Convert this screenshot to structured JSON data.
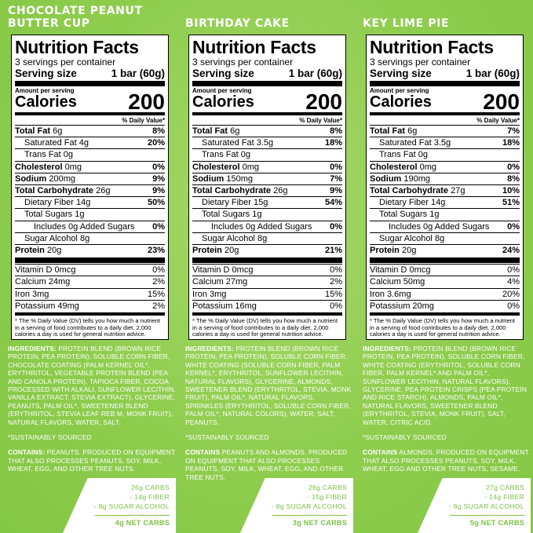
{
  "panels": [
    {
      "flavor": "CHOCOLATE PEANUT BUTTER CUP",
      "facts": {
        "title": "Nutrition Facts",
        "servings": "3 servings per container",
        "serving_size_label": "Serving size",
        "serving_size_value": "1 bar (60g)",
        "amount_per_serving": "Amount per serving",
        "calories_label": "Calories",
        "calories": "200",
        "dv_header": "% Daily Value*",
        "nutrients": [
          {
            "label": "Total Fat",
            "amount": "6g",
            "dv": "8%"
          },
          {
            "label": "Saturated Fat",
            "amount": "4g",
            "dv": "20%"
          },
          {
            "label": "Trans Fat",
            "amount": "0g",
            "dv": ""
          },
          {
            "label": "Cholesterol",
            "amount": "0mg",
            "dv": "0%"
          },
          {
            "label": "Sodium",
            "amount": "200mg",
            "dv": "9%"
          },
          {
            "label": "Total Carbohydrate",
            "amount": "26g",
            "dv": "9%"
          },
          {
            "label": "Dietary Fiber",
            "amount": "14g",
            "dv": "50%"
          },
          {
            "label": "Total Sugars",
            "amount": "1g",
            "dv": ""
          },
          {
            "label": "Includes 0g Added Sugars",
            "amount": "",
            "dv": "0%"
          },
          {
            "label": "Sugar Alcohol",
            "amount": "8g",
            "dv": ""
          },
          {
            "label": "Protein",
            "amount": "20g",
            "dv": "23%"
          }
        ],
        "vitamins": [
          {
            "label": "Vitamin D 0mcg",
            "dv": "0%"
          },
          {
            "label": "Calcium 24mg",
            "dv": "2%"
          },
          {
            "label": "Iron 3mg",
            "dv": "15%"
          },
          {
            "label": "Potassium 49mg",
            "dv": "2%"
          }
        ],
        "footnote": "* The % Daily Value (DV) tells you how much a nutrient in a serving of food contributes to a daily diet. 2,000 calories a day is used for general nutrition advice."
      },
      "ingredients_label": "INGREDIENTS:",
      "ingredients": "PROTEIN BLEND (BROWN RICE PROTEIN, PEA PROTEIN), SOLUBLE CORN FIBER, CHOCOLATE COATING (PALM KERNEL OIL*, ERYTHRITOL, VEGETABLE PROTEIN BLEND (PEA AND CANOLA PROTEIN), TAPIOCA FIBER, COCOA PROCESSED WITH ALKALI, SUNFLOWER LECITHIN, VANILLA EXTRACT, STEVIA EXTRACT), GLYCERINE, PEANUTS, PALM OIL*, SWEETENER BLEND (ERYTHRITOL, STEVIA LEAF REB M, MONK FRUIT), NATURAL FLAVORS, WATER, SALT.",
      "sourced": "*SUSTAINABLY SOURCED",
      "contains_label": "CONTAINS:",
      "contains": "PEANUTS. PRODUCED ON EQUIPMENT THAT ALSO PROCESSES PEANUTS, SOY, MILK, WHEAT, EGG, AND OTHER TREE NUTS.",
      "netcarbs": {
        "carbs": "26g CARBS",
        "fiber": "- 14g FIBER",
        "sugar_alcohol": "- 8g SUGAR ALCOHOL",
        "net": "4g NET CARBS"
      }
    },
    {
      "flavor": "BIRTHDAY CAKE",
      "facts": {
        "title": "Nutrition Facts",
        "servings": "3 servings per container",
        "serving_size_label": "Serving size",
        "serving_size_value": "1 bar (60g)",
        "amount_per_serving": "Amount per serving",
        "calories_label": "Calories",
        "calories": "200",
        "dv_header": "% Daily Value*",
        "nutrients": [
          {
            "label": "Total Fat",
            "amount": "6g",
            "dv": "8%"
          },
          {
            "label": "Saturated Fat",
            "amount": "3.5g",
            "dv": "18%"
          },
          {
            "label": "Trans Fat",
            "amount": "0g",
            "dv": ""
          },
          {
            "label": "Cholesterol",
            "amount": "0mg",
            "dv": "0%"
          },
          {
            "label": "Sodium",
            "amount": "150mg",
            "dv": "7%"
          },
          {
            "label": "Total Carbohydrate",
            "amount": "26g",
            "dv": "9%"
          },
          {
            "label": "Dietary Fiber",
            "amount": "15g",
            "dv": "54%"
          },
          {
            "label": "Total Sugars",
            "amount": "1g",
            "dv": ""
          },
          {
            "label": "Includes 0g Added Sugars",
            "amount": "",
            "dv": "0%"
          },
          {
            "label": "Sugar Alcohol",
            "amount": "8g",
            "dv": ""
          },
          {
            "label": "Protein",
            "amount": "20g",
            "dv": "21%"
          }
        ],
        "vitamins": [
          {
            "label": "Vitamin D 0mcg",
            "dv": "0%"
          },
          {
            "label": "Calcium 27mg",
            "dv": "2%"
          },
          {
            "label": "Iron 3mg",
            "dv": "15%"
          },
          {
            "label": "Potassium 16mg",
            "dv": "0%"
          }
        ],
        "footnote": "* The % Daily Value (DV) tells you how much a nutrient in a serving of food contributes to a daily diet. 2,000 calories a day is used for general nutrition advice."
      },
      "ingredients_label": "INGREDIENTS:",
      "ingredients": "PROTEIN BLEND (BROWN RICE PROTEIN, PEA PROTEIN), SOLUBLE CORN FIBER, WHITE COATING (SOLUBLE CORN FIBER, PALM KERNEL*, ERYTHRITOL, SUNFLOWER LECITHIN, NATURAL FLAVORS), GLYCERINE, ALMONDS, SWEETENER BLEND (ERYTHRITOL, STEVIA, MONK FRUIT), PALM OIL*, NATURAL FLAVORS, SPRINKLES (ERYTHRITOL, SOLUBLE CORN FIBER, PALM OIL*, NATURAL COLORS), WATER, SALT, PEANUTS.",
      "sourced": "*SUSTAINABLY SOURCED",
      "contains_label": "CONTAINS",
      "contains": "PEANUTS AND ALMONDS. PRODUCED ON EQUIPMENT THAT ALSO PROCESSES PEANUTS, SOY, MILK, WHEAT, EGG, AND OTHER TREE NUTS.",
      "netcarbs": {
        "carbs": "26g CARBS",
        "fiber": "- 15g FIBER",
        "sugar_alcohol": "- 8g SUGAR ALCOHOL",
        "net": "3g NET CARBS"
      }
    },
    {
      "flavor": "KEY LIME PIE",
      "facts": {
        "title": "Nutrition Facts",
        "servings": "3 servings per container",
        "serving_size_label": "Serving size",
        "serving_size_value": "1 bar (60g)",
        "amount_per_serving": "Amount per serving",
        "calories_label": "Calories",
        "calories": "200",
        "dv_header": "% Daily Value*",
        "nutrients": [
          {
            "label": "Total Fat",
            "amount": "6g",
            "dv": "7%"
          },
          {
            "label": "Saturated Fat",
            "amount": "3.5g",
            "dv": "18%"
          },
          {
            "label": "Trans Fat",
            "amount": "0g",
            "dv": ""
          },
          {
            "label": "Cholesterol",
            "amount": "0mg",
            "dv": "0%"
          },
          {
            "label": "Sodium",
            "amount": "190mg",
            "dv": "8%"
          },
          {
            "label": "Total Carbohydrate",
            "amount": "27g",
            "dv": "10%"
          },
          {
            "label": "Dietary Fiber",
            "amount": "14g",
            "dv": "51%"
          },
          {
            "label": "Total Sugars",
            "amount": "1g",
            "dv": ""
          },
          {
            "label": "Includes 0g Added Sugars",
            "amount": "",
            "dv": "0%"
          },
          {
            "label": "Sugar Alcohol",
            "amount": "8g",
            "dv": ""
          },
          {
            "label": "Protein",
            "amount": "20g",
            "dv": "24%"
          }
        ],
        "vitamins": [
          {
            "label": "Vitamin D 0mcg",
            "dv": "0%"
          },
          {
            "label": "Calcium 50mg",
            "dv": "4%"
          },
          {
            "label": "Iron 3.6mg",
            "dv": "20%"
          },
          {
            "label": "Potassium 20mg",
            "dv": "0%"
          }
        ],
        "footnote": "* The % Daily Value (DV) tells you how much a nutrient in a serving of food contributes to a daily diet. 2,000 calories a day is used for general nutrition advice."
      },
      "ingredients_label": "INGREDIENTS:",
      "ingredients": "PROTEIN BLEND (BROWN RICE PROTEIN, PEA PROTEIN), SOLUBLE CORN FIBER, WHITE COATING (ERYTHRITOL, SOLUBLE CORN FIBER, PALM KERNEL* AND PALM OIL*, SUNFLOWER LECITHIN, NATURAL FLAVORS), GLYCERINE, PEA PROTEIN CRISPS (PEA PROTEIN AND RICE STARCH), ALMONDS, PALM OIL*, NATURAL FLAVORS, SWEETENER BLEND (ERYTHRITOL, STEVIA, MONK FRUIT), SALT, WATER, CITRIC ACID.",
      "sourced": "*SUSTAINABLY SOURCED",
      "contains_label": "CONTAINS",
      "contains": "ALMONDS. PRODUCED ON EQUIPMENT THAT ALSO PROCESSES PEANUTS, SOY, MILK, WHEAT, EGG AND OTHER TREE NUTS, SESAME.",
      "netcarbs": {
        "carbs": "27g CARBS",
        "fiber": "- 14g FIBER",
        "sugar_alcohol": "- 8g SUGAR ALCOHOL",
        "net": "5g NET CARBS"
      }
    }
  ],
  "colors": {
    "background": "#8fcd4f",
    "accent": "#7cc043",
    "text_on_green": "#ffffff"
  }
}
